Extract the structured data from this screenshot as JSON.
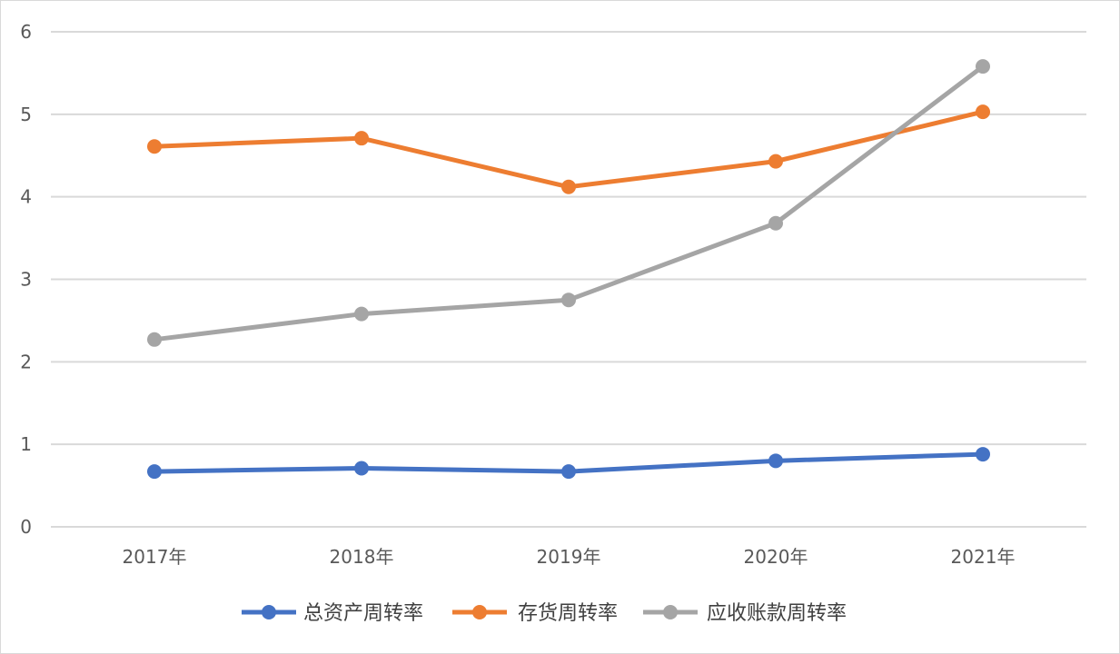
{
  "chart_data": {
    "type": "line",
    "title": "",
    "xlabel": "",
    "ylabel": "",
    "categories": [
      "2017年",
      "2018年",
      "2019年",
      "2020年",
      "2021年"
    ],
    "ylim": [
      0,
      6
    ],
    "yticks": [
      0,
      1,
      2,
      3,
      4,
      5,
      6
    ],
    "grid": true,
    "legend_position": "bottom",
    "series": [
      {
        "name": "总资产周转率",
        "color": "#4472c4",
        "values": [
          0.67,
          0.71,
          0.67,
          0.8,
          0.88
        ]
      },
      {
        "name": "存货周转率",
        "color": "#ed7d31",
        "values": [
          4.61,
          4.71,
          4.12,
          4.43,
          5.03
        ]
      },
      {
        "name": "应收账款周转率",
        "color": "#a5a5a5",
        "values": [
          2.27,
          2.58,
          2.75,
          3.68,
          5.58
        ]
      }
    ]
  }
}
